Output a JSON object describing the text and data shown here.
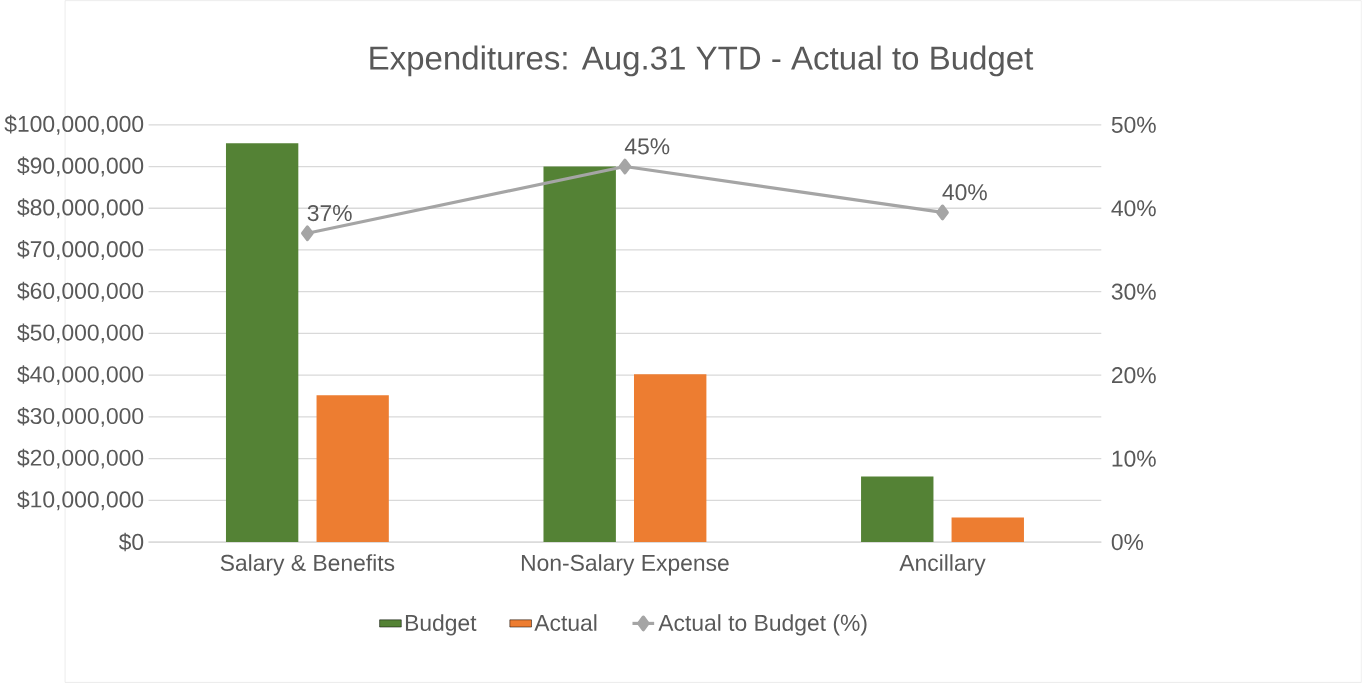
{
  "chart_data": {
    "type": "bar",
    "title": "Expenditures: Aug.31 YTD  - Actual to Budget",
    "categories": [
      "Salary & Benefits",
      "Non-Salary Expense",
      "Ancillary"
    ],
    "series": [
      {
        "name": "Budget",
        "color": "#548235",
        "values": [
          95600000,
          90000000,
          15700000
        ]
      },
      {
        "name": "Actual",
        "color": "#ed7d31",
        "values": [
          35200000,
          40200000,
          5900000
        ]
      },
      {
        "name": "Actual to Budget (%)",
        "type": "line",
        "axis": "y2",
        "color": "#a5a5a5",
        "marker": "diamond",
        "values": [
          37,
          45,
          39.5
        ],
        "value_labels": [
          "37%",
          "45%",
          "40%"
        ]
      }
    ],
    "ylim": [
      0,
      100000000
    ],
    "yticks": [
      {
        "value": 0,
        "label": "$0"
      },
      {
        "value": 10000000,
        "label": "$10,000,000"
      },
      {
        "value": 20000000,
        "label": "$20,000,000"
      },
      {
        "value": 30000000,
        "label": "$30,000,000"
      },
      {
        "value": 40000000,
        "label": "$40,000,000"
      },
      {
        "value": 50000000,
        "label": "$50,000,000"
      },
      {
        "value": 60000000,
        "label": "$60,000,000"
      },
      {
        "value": 70000000,
        "label": "$70,000,000"
      },
      {
        "value": 80000000,
        "label": "$80,000,000"
      },
      {
        "value": 90000000,
        "label": "$90,000,000"
      },
      {
        "value": 100000000,
        "label": "$100,000,000"
      }
    ],
    "y2lim": [
      0,
      50
    ],
    "y2ticks": [
      {
        "value": 0,
        "label": "0%"
      },
      {
        "value": 10,
        "label": "10%"
      },
      {
        "value": 20,
        "label": "20%"
      },
      {
        "value": 30,
        "label": "30%"
      },
      {
        "value": 40,
        "label": "40%"
      },
      {
        "value": 50,
        "label": "50%"
      }
    ],
    "grid": "y",
    "legend": "bottom"
  }
}
